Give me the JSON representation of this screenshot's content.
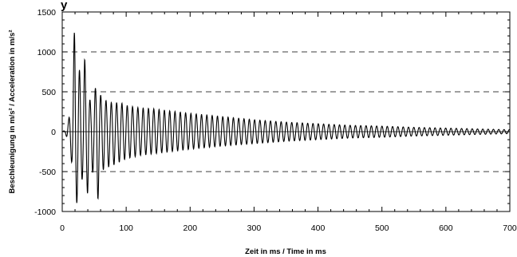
{
  "title_fragment": "y",
  "chart_data": {
    "type": "line",
    "title": "",
    "xlabel": "Zeit in ms / Time in ms",
    "ylabel": "Beschleunigung in m/s² / Acceleration in m/s²",
    "xlim": [
      0,
      700
    ],
    "ylim": [
      -1000,
      1500
    ],
    "x_ticks": [
      "0",
      "100",
      "200",
      "300",
      "400",
      "500",
      "600",
      "700"
    ],
    "y_ticks": [
      "-1000",
      "-500",
      "0",
      "500",
      "1000",
      "1500"
    ],
    "gridlines_y": [
      -500,
      500,
      1000
    ],
    "grid_style": "dashed-horizontal",
    "legend": "none",
    "series": [
      {
        "color": "#000000",
        "description_points": {
          "x_ms": [
            0,
            5,
            10,
            15,
            20,
            25,
            30,
            35,
            40,
            45,
            50,
            55,
            60,
            70,
            80,
            90,
            100,
            120,
            140,
            160,
            180,
            200,
            250,
            300,
            350,
            400,
            450,
            500,
            550,
            600,
            650,
            700
          ],
          "envelope_max": [
            0,
            20,
            150,
            400,
            1500,
            820,
            700,
            920,
            580,
            320,
            540,
            560,
            460,
            380,
            360,
            370,
            330,
            300,
            290,
            270,
            250,
            230,
            190,
            150,
            120,
            100,
            80,
            70,
            55,
            45,
            35,
            25
          ],
          "envelope_min": [
            0,
            -20,
            -150,
            -400,
            -950,
            -850,
            -620,
            -530,
            -800,
            -550,
            -480,
            -920,
            -500,
            -450,
            -420,
            -380,
            -340,
            -300,
            -280,
            -260,
            -240,
            -220,
            -180,
            -150,
            -120,
            -100,
            -80,
            -70,
            -55,
            -45,
            -35,
            -25
          ]
        },
        "oscillation_period_ms": 8.3
      }
    ]
  }
}
